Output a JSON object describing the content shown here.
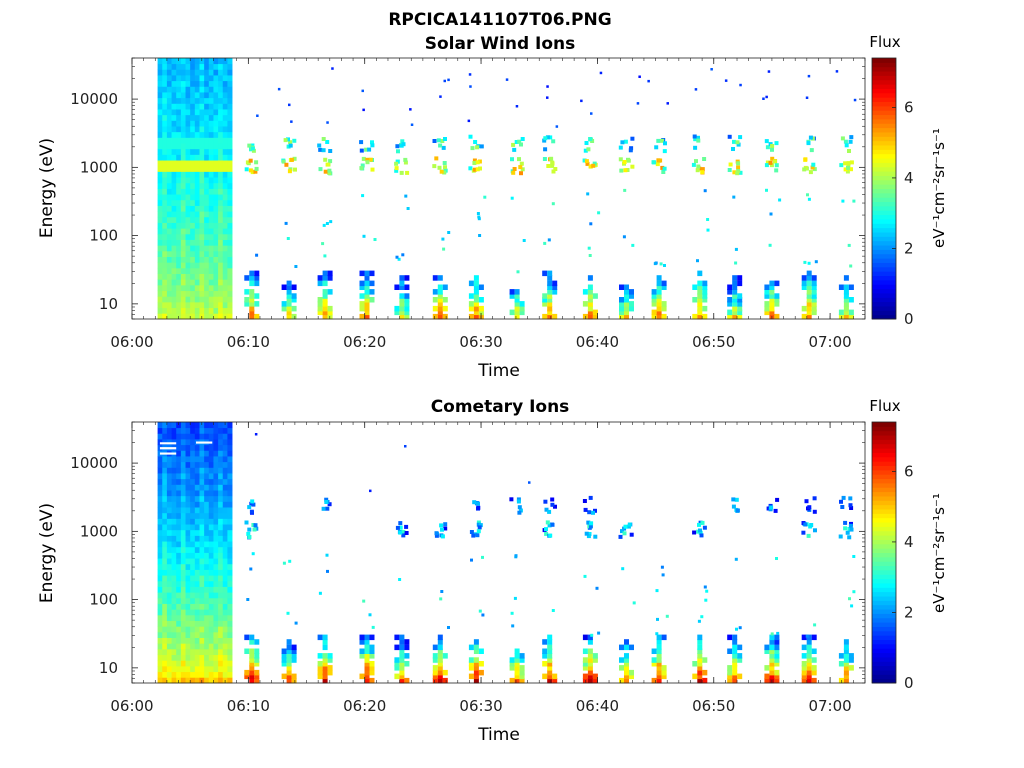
{
  "figure_title": "RPCICA141107T06.PNG",
  "colors": {
    "colormap": [
      "#00008f",
      "#0000ff",
      "#0080ff",
      "#00ffff",
      "#80ff80",
      "#ffff00",
      "#ff8000",
      "#ff0000",
      "#800000"
    ],
    "axis": "#222222",
    "white_mark": "#ffffff"
  },
  "chart_data": [
    {
      "type": "heatmap",
      "title": "Solar Wind Ions",
      "xlabel": "Time",
      "ylabel": "Energy (eV)",
      "yscale": "log",
      "ylim": [
        6,
        40000
      ],
      "xlim_minutes": [
        0,
        63
      ],
      "x_ticks": [
        {
          "label": "06:00",
          "minute": 0
        },
        {
          "label": "06:10",
          "minute": 10
        },
        {
          "label": "06:20",
          "minute": 20
        },
        {
          "label": "06:30",
          "minute": 30
        },
        {
          "label": "06:40",
          "minute": 40
        },
        {
          "label": "06:50",
          "minute": 50
        },
        {
          "label": "07:00",
          "minute": 60
        }
      ],
      "y_ticks": [
        {
          "label": "10",
          "value": 10
        },
        {
          "label": "100",
          "value": 100
        },
        {
          "label": "1000",
          "value": 1000
        },
        {
          "label": "10000",
          "value": 10000
        }
      ],
      "colorbar": {
        "title": "Flux",
        "label": "eV⁻¹cm⁻²sr⁻¹s⁻¹",
        "range": [
          0,
          7.4
        ],
        "ticks": [
          "0",
          "2",
          "4",
          "6"
        ]
      },
      "background_block": {
        "start_minute": 2.2,
        "end_minute": 8.6,
        "low_energy_flux": 4.2,
        "high_energy_flux": 2.2
      },
      "bursts_minutes": [
        10.3,
        13.5,
        16.6,
        20.2,
        23.2,
        26.5,
        29.6,
        33.1,
        35.9,
        39.4,
        42.5,
        45.3,
        48.8,
        51.8,
        55.0,
        58.2,
        61.4
      ],
      "band_features": [
        {
          "energy_ev": 1050,
          "flux": 4.4
        },
        {
          "energy_ev": 2200,
          "flux": 3.0
        }
      ],
      "white_marks": []
    },
    {
      "type": "heatmap",
      "title": "Cometary Ions",
      "xlabel": "Time",
      "ylabel": "Energy (eV)",
      "yscale": "log",
      "ylim": [
        6,
        40000
      ],
      "xlim_minutes": [
        0,
        63
      ],
      "x_ticks": [
        {
          "label": "06:00",
          "minute": 0
        },
        {
          "label": "06:10",
          "minute": 10
        },
        {
          "label": "06:20",
          "minute": 20
        },
        {
          "label": "06:30",
          "minute": 30
        },
        {
          "label": "06:40",
          "minute": 40
        },
        {
          "label": "06:50",
          "minute": 50
        },
        {
          "label": "07:00",
          "minute": 60
        }
      ],
      "y_ticks": [
        {
          "label": "10",
          "value": 10
        },
        {
          "label": "100",
          "value": 100
        },
        {
          "label": "1000",
          "value": 1000
        },
        {
          "label": "10000",
          "value": 10000
        }
      ],
      "colorbar": {
        "title": "Flux",
        "label": "eV⁻¹cm⁻²sr⁻¹s⁻¹",
        "range": [
          0,
          7.4
        ],
        "ticks": [
          "0",
          "2",
          "4",
          "6"
        ]
      },
      "background_block": {
        "start_minute": 2.2,
        "end_minute": 8.6,
        "low_energy_flux": 5.0,
        "high_energy_flux": 1.4
      },
      "bursts_minutes": [
        10.3,
        13.5,
        16.6,
        20.2,
        23.2,
        26.5,
        29.6,
        33.1,
        35.9,
        39.4,
        42.5,
        45.3,
        48.8,
        51.8,
        55.0,
        58.2,
        61.4
      ],
      "band_features": [
        {
          "energy_ev": 1050,
          "flux": 2.2
        },
        {
          "energy_ev": 2400,
          "flux": 1.6
        }
      ],
      "white_marks": [
        {
          "minute_start": 2.4,
          "minute_end": 3.8,
          "energy_ev": 19500
        },
        {
          "minute_start": 2.4,
          "minute_end": 3.8,
          "energy_ev": 16500
        },
        {
          "minute_start": 2.4,
          "minute_end": 3.8,
          "energy_ev": 13800
        },
        {
          "minute_start": 5.5,
          "minute_end": 6.9,
          "energy_ev": 20000
        }
      ]
    }
  ]
}
